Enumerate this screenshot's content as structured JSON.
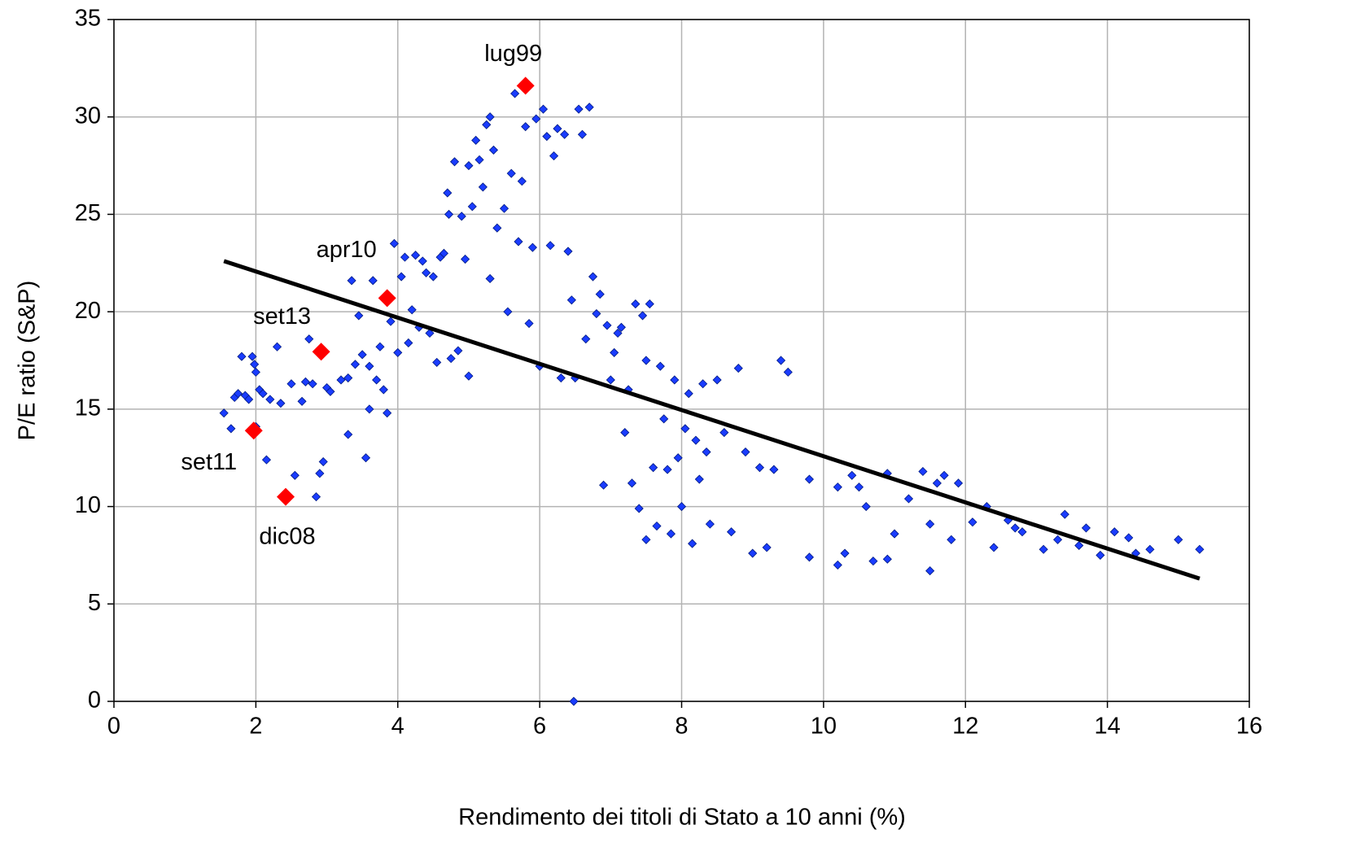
{
  "chart_data": {
    "type": "scatter",
    "xlabel": "Rendimento dei titoli di Stato a 10 anni (%)",
    "ylabel": "P/E ratio (S&P)",
    "xlim": [
      0,
      16
    ],
    "xticks": [
      0,
      2,
      4,
      6,
      8,
      10,
      12,
      14,
      16
    ],
    "ylim": [
      0,
      35
    ],
    "yticks": [
      0,
      5,
      10,
      15,
      20,
      25,
      30,
      35
    ],
    "grid": true,
    "series": [
      {
        "color": "#1a3cff",
        "x": [
          1.55,
          1.65,
          1.7,
          1.75,
          1.8,
          1.85,
          1.9,
          1.95,
          1.98,
          2.0,
          2.0,
          2.05,
          2.1,
          2.15,
          2.2,
          2.3,
          2.35,
          2.5,
          2.55,
          2.65,
          2.7,
          2.75,
          2.8,
          2.85,
          2.9,
          2.95,
          3.0,
          3.05,
          3.2,
          3.3,
          3.3,
          3.35,
          3.4,
          3.45,
          3.5,
          3.55,
          3.6,
          3.6,
          3.65,
          3.7,
          3.75,
          3.8,
          3.85,
          3.9,
          3.95,
          4.0,
          4.05,
          4.1,
          4.15,
          4.2,
          4.25,
          4.3,
          4.35,
          4.4,
          4.45,
          4.5,
          4.55,
          4.6,
          4.65,
          4.7,
          4.72,
          4.75,
          4.8,
          4.85,
          4.9,
          4.95,
          5.0,
          5.0,
          5.05,
          5.1,
          5.15,
          5.2,
          5.25,
          5.3,
          5.3,
          5.35,
          5.4,
          5.5,
          5.55,
          5.6,
          5.65,
          5.7,
          5.75,
          5.8,
          5.85,
          5.9,
          5.95,
          6.0,
          6.05,
          6.1,
          6.15,
          6.2,
          6.25,
          6.3,
          6.35,
          6.4,
          6.45,
          6.5,
          6.55,
          6.6,
          6.65,
          6.7,
          6.75,
          6.8,
          6.85,
          6.9,
          6.95,
          7.0,
          7.05,
          7.1,
          7.15,
          7.2,
          7.25,
          7.3,
          7.35,
          7.4,
          7.45,
          7.5,
          7.5,
          7.55,
          7.6,
          7.65,
          7.7,
          7.75,
          7.8,
          7.85,
          7.9,
          7.95,
          8.0,
          8.05,
          8.1,
          8.15,
          8.2,
          8.25,
          8.3,
          8.35,
          8.4,
          8.5,
          8.6,
          8.7,
          8.8,
          8.9,
          9.0,
          9.1,
          9.2,
          9.3,
          9.4,
          9.5,
          9.8,
          9.8,
          10.2,
          10.2,
          10.3,
          10.4,
          10.5,
          10.6,
          10.7,
          10.9,
          10.9,
          11.0,
          11.2,
          11.4,
          11.5,
          11.5,
          11.6,
          11.7,
          11.8,
          11.9,
          12.1,
          12.3,
          12.4,
          12.6,
          12.7,
          12.8,
          13.1,
          13.3,
          13.4,
          13.6,
          13.7,
          13.9,
          14.1,
          14.3,
          14.4,
          14.6,
          15.0,
          15.3,
          6.48
        ],
        "values": [
          14.8,
          14,
          15.6,
          15.8,
          17.7,
          15.7,
          15.5,
          17.7,
          17.3,
          16.9,
          14.1,
          16,
          15.8,
          12.4,
          15.5,
          18.2,
          15.3,
          16.3,
          11.6,
          15.4,
          16.4,
          18.6,
          16.3,
          10.5,
          11.7,
          12.3,
          16.1,
          15.9,
          16.5,
          16.6,
          13.7,
          21.6,
          17.3,
          19.8,
          17.8,
          12.5,
          15,
          17.2,
          21.6,
          16.5,
          18.2,
          16,
          14.8,
          19.5,
          23.5,
          17.9,
          21.8,
          22.8,
          18.4,
          20.1,
          22.9,
          19.2,
          22.6,
          22,
          18.9,
          21.8,
          17.4,
          22.8,
          23,
          26.1,
          25,
          17.6,
          27.7,
          18,
          24.9,
          22.7,
          27.5,
          16.7,
          25.4,
          28.8,
          27.8,
          26.4,
          29.6,
          30,
          21.7,
          28.3,
          24.3,
          25.3,
          20,
          27.1,
          31.2,
          23.6,
          26.7,
          29.5,
          19.4,
          23.3,
          29.9,
          17.2,
          30.4,
          29,
          23.4,
          28,
          29.4,
          16.6,
          29.1,
          23.1,
          20.6,
          16.6,
          30.4,
          29.1,
          18.6,
          30.5,
          21.8,
          19.9,
          20.9,
          11.1,
          19.3,
          16.5,
          17.9,
          18.9,
          19.2,
          13.8,
          16,
          11.2,
          20.4,
          9.9,
          19.8,
          17.5,
          8.3,
          20.4,
          12,
          9,
          17.2,
          14.5,
          11.9,
          8.6,
          16.5,
          12.5,
          10,
          14,
          15.8,
          8.1,
          13.4,
          11.4,
          16.3,
          12.8,
          9.1,
          16.5,
          13.8,
          8.7,
          17.1,
          12.8,
          7.6,
          12,
          7.9,
          11.9,
          17.5,
          16.9,
          7.4,
          11.4,
          11,
          7,
          7.6,
          11.6,
          11,
          10,
          7.2,
          7.3,
          11.7,
          8.6,
          10.4,
          11.8,
          9.1,
          6.7,
          11.2,
          11.6,
          8.3,
          11.2,
          9.2,
          10,
          7.9,
          9.3,
          8.9,
          8.7,
          7.8,
          8.3,
          9.6,
          8,
          8.9,
          7.5,
          8.7,
          8.4,
          7.6,
          7.8,
          8.3,
          7.8,
          0
        ]
      }
    ],
    "highlights": {
      "color": "#ff0000",
      "labels": [
        "lug99",
        "apr10",
        "set13",
        "set11",
        "dic08"
      ],
      "x": [
        5.8,
        3.85,
        2.92,
        1.97,
        2.42
      ],
      "values": [
        31.6,
        20.7,
        17.95,
        13.9,
        10.5
      ]
    },
    "trendline": {
      "color": "#000000",
      "x": [
        1.55,
        15.3
      ],
      "values": [
        22.6,
        6.3
      ]
    }
  }
}
